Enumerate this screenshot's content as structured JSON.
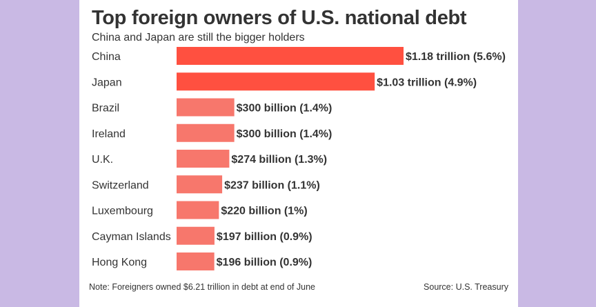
{
  "chart_data": {
    "type": "bar",
    "orientation": "horizontal",
    "title": "Top foreign owners of U.S. national debt",
    "subtitle": "China and Japan are still the bigger holders",
    "categories": [
      "China",
      "Japan",
      "Brazil",
      "Ireland",
      "U.K.",
      "Switzerland",
      "Luxembourg",
      "Cayman Islands",
      "Hong Kong"
    ],
    "values": [
      1180,
      1030,
      300,
      300,
      274,
      237,
      220,
      197,
      196
    ],
    "unit": "billion USD",
    "data_labels": [
      "$1.18 trillion (5.6%)",
      "$1.03 trillion (4.9%)",
      "$300 billion (1.4%)",
      "$300 billion (1.4%)",
      "$274 billion (1.3%)",
      "$237 billion (1.1%)",
      "$220 billion (1%)",
      "$197 billion (0.9%)",
      "$196 billion (0.9%)"
    ],
    "bar_colors": [
      "#ff5040",
      "#ff5040",
      "#f7776c",
      "#f7776c",
      "#f7776c",
      "#f7776c",
      "#f7776c",
      "#f7776c",
      "#f7776c"
    ],
    "xlabel": "",
    "ylabel": "",
    "xlim": [
      0,
      1180
    ],
    "grid": false,
    "legend": "none"
  },
  "footer": {
    "note": "Note: Foreigners owned $6.21 trillion in debt at end of June",
    "source": "Source: U.S. Treasury"
  },
  "colors": {
    "page_background": "#c9b9e4",
    "card_background": "#ffffff",
    "text": "#333333"
  }
}
